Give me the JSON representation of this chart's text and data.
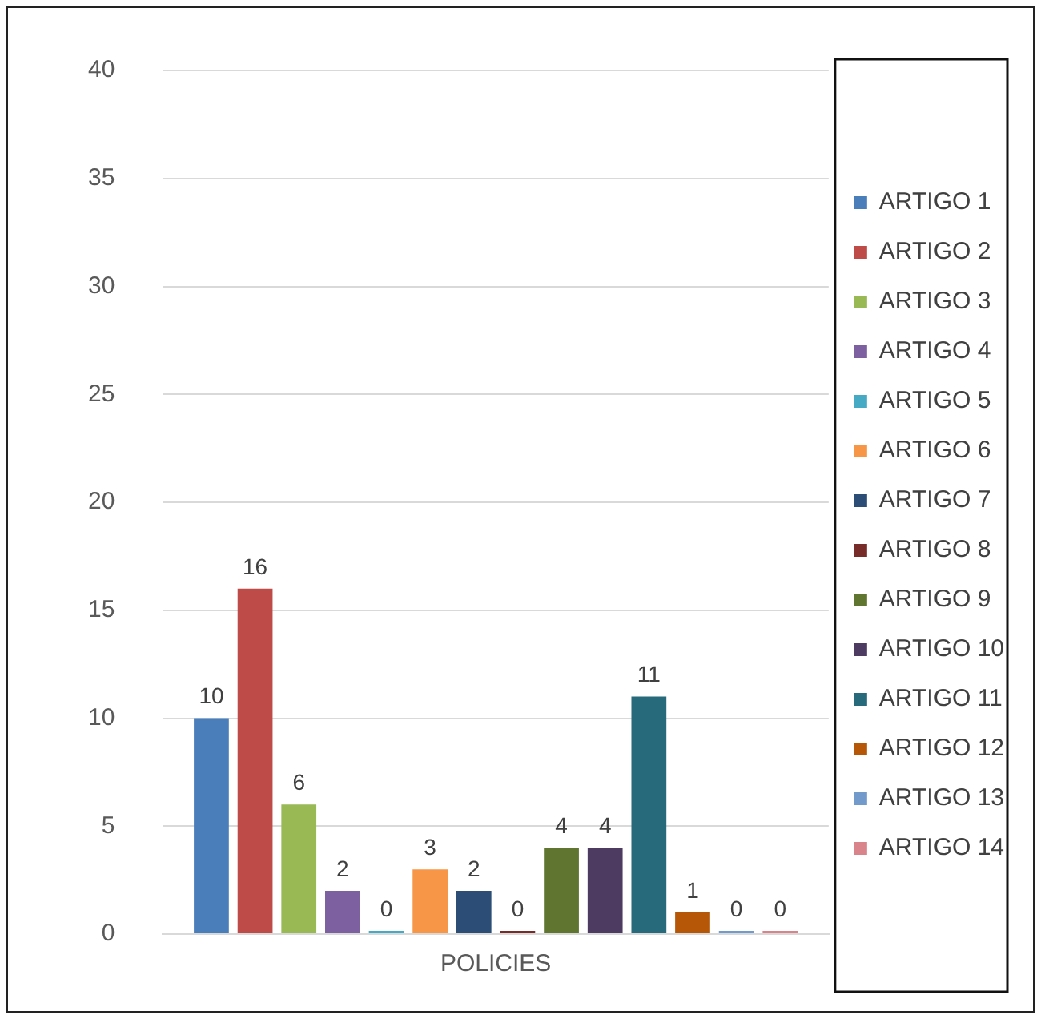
{
  "chart_data": {
    "type": "bar",
    "categories": [
      "POLICIES"
    ],
    "series": [
      {
        "name": "ARTIGO 1",
        "color": "#4a7ebb",
        "values": [
          10
        ]
      },
      {
        "name": "ARTIGO 2",
        "color": "#be4b48",
        "values": [
          16
        ]
      },
      {
        "name": "ARTIGO 3",
        "color": "#98b954",
        "values": [
          6
        ]
      },
      {
        "name": "ARTIGO 4",
        "color": "#7d60a0",
        "values": [
          2
        ]
      },
      {
        "name": "ARTIGO 5",
        "color": "#46aac5",
        "values": [
          0
        ]
      },
      {
        "name": "ARTIGO 6",
        "color": "#f79646",
        "values": [
          3
        ]
      },
      {
        "name": "ARTIGO 7",
        "color": "#2c4d75",
        "values": [
          2
        ]
      },
      {
        "name": "ARTIGO 8",
        "color": "#772c2a",
        "values": [
          0
        ]
      },
      {
        "name": "ARTIGO 9",
        "color": "#5f7530",
        "values": [
          4
        ]
      },
      {
        "name": "ARTIGO 10",
        "color": "#4d3b62",
        "values": [
          4
        ]
      },
      {
        "name": "ARTIGO 11",
        "color": "#276a7c",
        "values": [
          11
        ]
      },
      {
        "name": "ARTIGO 12",
        "color": "#b65708",
        "values": [
          1
        ]
      },
      {
        "name": "ARTIGO 13",
        "color": "#729aca",
        "values": [
          0
        ]
      },
      {
        "name": "ARTIGO 14",
        "color": "#d9838a",
        "values": [
          0
        ]
      }
    ],
    "ylim": [
      0,
      40
    ],
    "yticks": [
      0,
      5,
      10,
      15,
      20,
      25,
      30,
      35,
      40
    ],
    "grid": "y",
    "legend": "right",
    "data_labels": true
  }
}
